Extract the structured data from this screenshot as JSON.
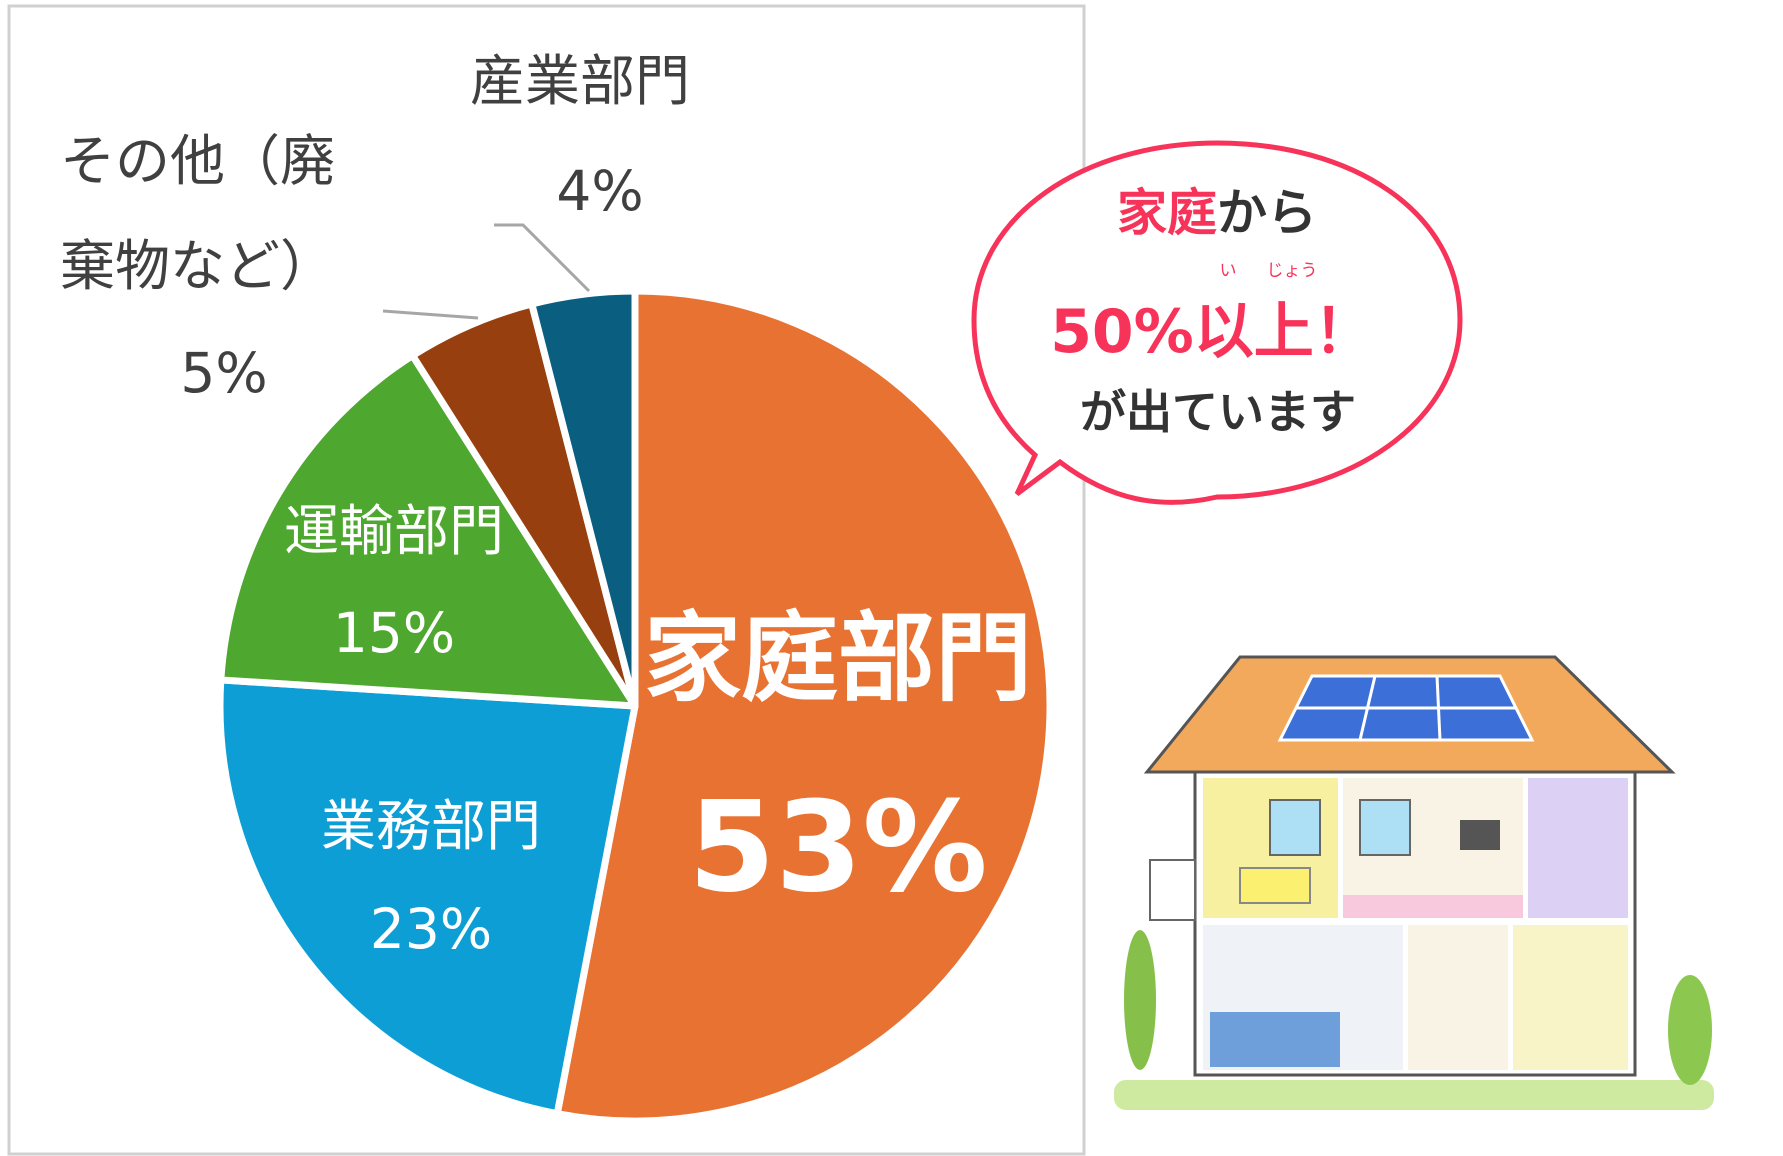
{
  "chart_data": {
    "type": "pie",
    "start_angle": "12 o'clock",
    "direction": "clockwise",
    "slices": [
      {
        "label": "家庭部門",
        "value": 53,
        "value_label": "53%",
        "color": "#E87232"
      },
      {
        "label": "業務部門",
        "value": 23,
        "value_label": "23%",
        "color": "#0E9ED6"
      },
      {
        "label": "運輸部門",
        "value": 15,
        "value_label": "15%",
        "color": "#4EA72E"
      },
      {
        "label_line1": "その他（廃",
        "label_line2": "棄物など）",
        "value": 5,
        "value_label": "5%",
        "color": "#973F0E"
      },
      {
        "label": "産業部門",
        "value": 4,
        "value_label": "4%",
        "color": "#0A5F80"
      }
    ]
  },
  "callout": {
    "line1_highlight": "家庭",
    "line1_rest": "から",
    "ruby_i": "い",
    "ruby_jou": "じょう",
    "line2": "50%以上！",
    "line3": "が出ています",
    "accent_color": "#F7335A"
  },
  "illustration": {
    "icon": "house-with-solar-panels-illustration"
  }
}
